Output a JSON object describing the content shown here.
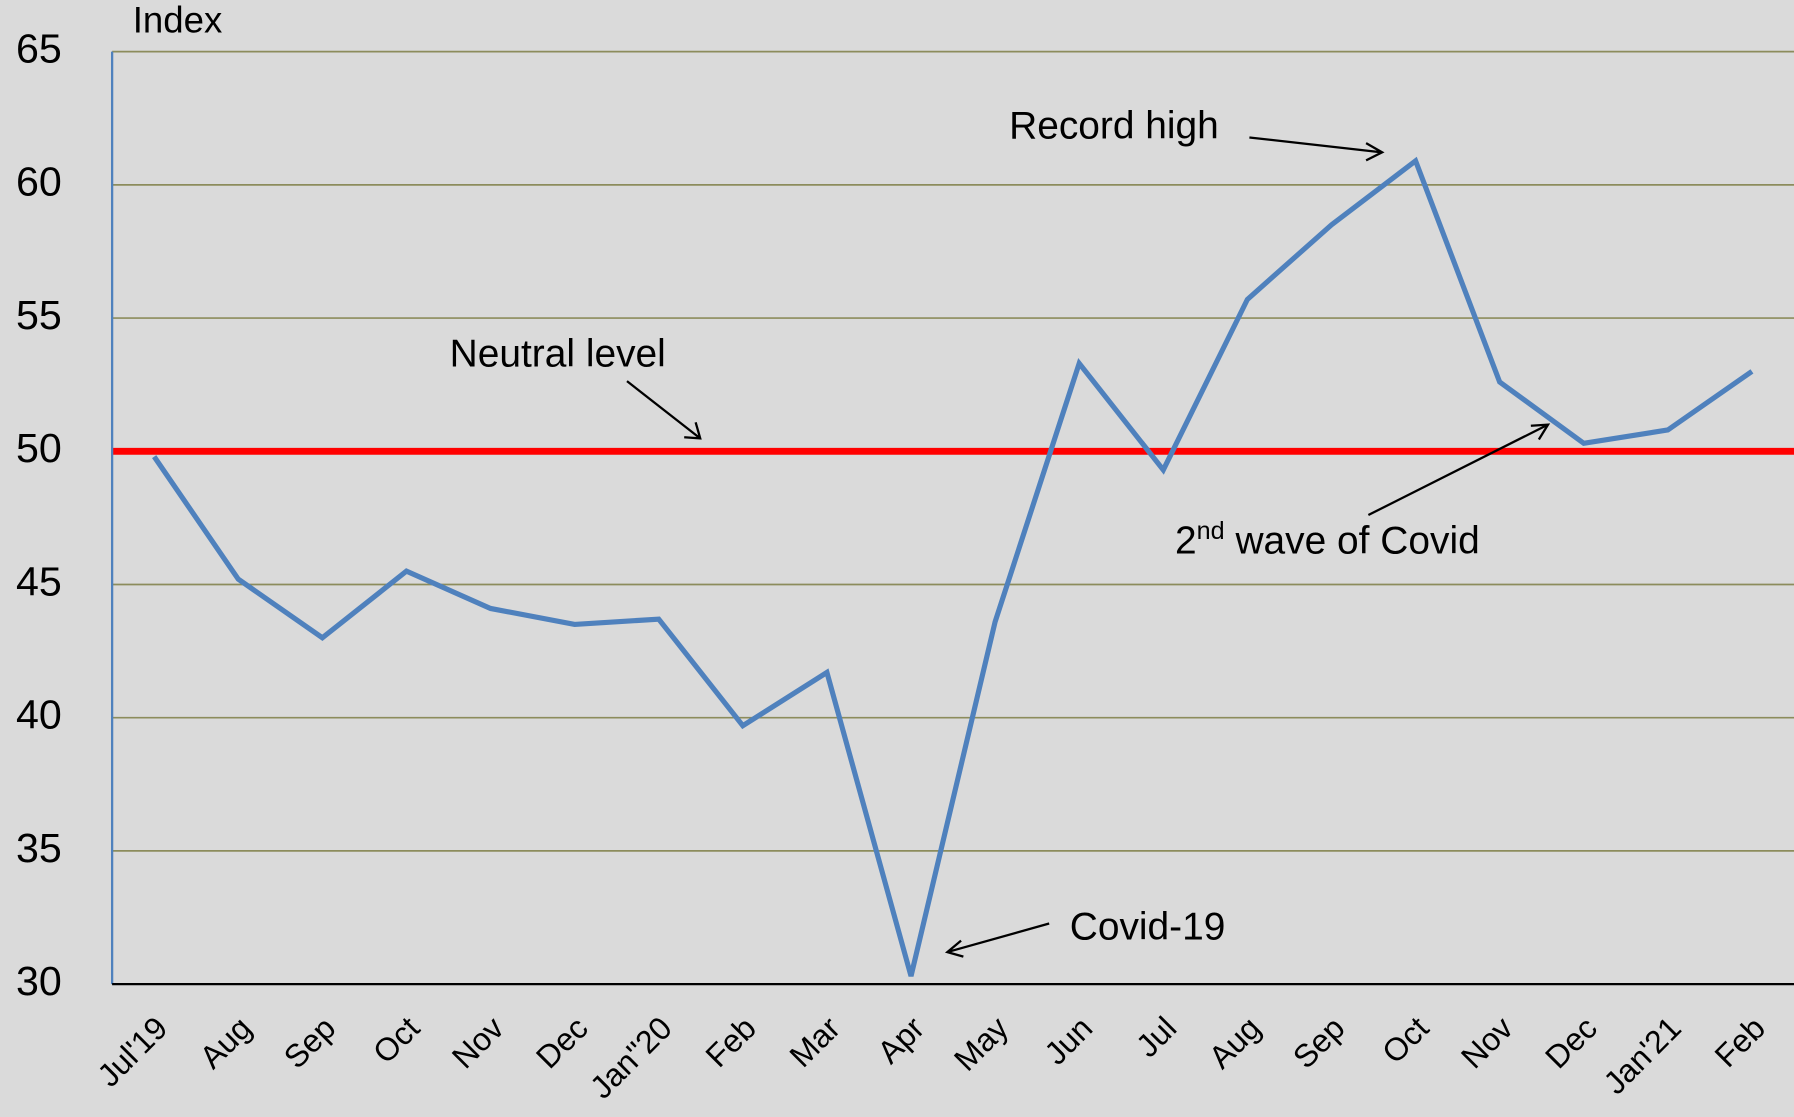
{
  "chart_data": {
    "type": "line",
    "y_label": "Index",
    "categories": [
      "Jul'19",
      "Aug",
      "Sep",
      "Oct",
      "Nov",
      "Dec",
      "Jan''20",
      "Feb",
      "Mar",
      "Apr",
      "May",
      "Jun",
      "Jul",
      "Aug",
      "Sep",
      "Oct",
      "Nov",
      "Dec",
      "Jan'21",
      "Feb"
    ],
    "values": [
      49.8,
      45.2,
      43.0,
      45.5,
      44.1,
      43.5,
      43.7,
      39.7,
      41.7,
      30.3,
      43.6,
      53.3,
      49.3,
      55.7,
      58.5,
      60.9,
      52.6,
      50.3,
      50.8,
      53.0
    ],
    "color": "#4f81bd",
    "ylim": [
      30,
      65
    ],
    "yticks": [
      30,
      35,
      40,
      45,
      50,
      55,
      60,
      65
    ],
    "grid": true,
    "grid_color": "#8c8c5c",
    "reference_line": {
      "value": 50,
      "color": "#ff0000"
    },
    "annotations": {
      "neutral": "Neutral level",
      "record": "Record high",
      "covid": "Covid-19",
      "wave": {
        "number": "2",
        "suffix": "nd",
        "text": " wave of Covid"
      }
    }
  }
}
